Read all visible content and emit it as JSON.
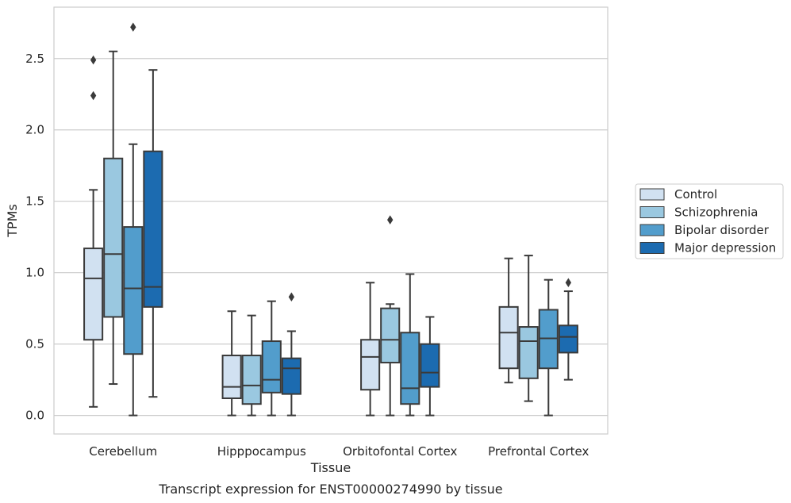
{
  "chart_data": {
    "type": "box",
    "xlabel": "Tissue",
    "ylabel": "TPMs",
    "caption": "Transcript expression for ENST00000274990 by tissue",
    "ylim": [
      -0.13,
      2.86
    ],
    "yticks": [
      0.0,
      0.5,
      1.0,
      1.5,
      2.0,
      2.5
    ],
    "ytick_labels": [
      "0.0",
      "0.5",
      "1.0",
      "1.5",
      "2.0",
      "2.5"
    ],
    "grid": "horizontal",
    "legend_position": "right",
    "categories": [
      "Cerebellum",
      "Hipppocampus",
      "Orbitofontal Cortex",
      "Prefrontal Cortex"
    ],
    "series": [
      {
        "name": "Control",
        "color": "#d1e1f1",
        "boxes": [
          {
            "whisker_low": 0.06,
            "q1": 0.53,
            "median": 0.96,
            "q3": 1.17,
            "whisker_high": 1.58,
            "outliers": [
              2.24,
              2.49
            ]
          },
          {
            "whisker_low": 0.0,
            "q1": 0.12,
            "median": 0.2,
            "q3": 0.42,
            "whisker_high": 0.73,
            "outliers": []
          },
          {
            "whisker_low": 0.0,
            "q1": 0.18,
            "median": 0.41,
            "q3": 0.53,
            "whisker_high": 0.93,
            "outliers": []
          },
          {
            "whisker_low": 0.23,
            "q1": 0.33,
            "median": 0.58,
            "q3": 0.76,
            "whisker_high": 1.1,
            "outliers": []
          }
        ]
      },
      {
        "name": "Schizophrenia",
        "color": "#9ac8e0",
        "boxes": [
          {
            "whisker_low": 0.22,
            "q1": 0.69,
            "median": 1.13,
            "q3": 1.8,
            "whisker_high": 2.55,
            "outliers": []
          },
          {
            "whisker_low": 0.0,
            "q1": 0.08,
            "median": 0.21,
            "q3": 0.42,
            "whisker_high": 0.7,
            "outliers": []
          },
          {
            "whisker_low": 0.0,
            "q1": 0.37,
            "median": 0.53,
            "q3": 0.75,
            "whisker_high": 0.78,
            "outliers": [
              1.37
            ]
          },
          {
            "whisker_low": 0.1,
            "q1": 0.26,
            "median": 0.52,
            "q3": 0.62,
            "whisker_high": 1.12,
            "outliers": []
          }
        ]
      },
      {
        "name": "Bipolar disorder",
        "color": "#529dcc",
        "boxes": [
          {
            "whisker_low": 0.0,
            "q1": 0.43,
            "median": 0.89,
            "q3": 1.32,
            "whisker_high": 1.9,
            "outliers": [
              2.72
            ]
          },
          {
            "whisker_low": 0.0,
            "q1": 0.16,
            "median": 0.25,
            "q3": 0.52,
            "whisker_high": 0.8,
            "outliers": []
          },
          {
            "whisker_low": 0.0,
            "q1": 0.08,
            "median": 0.19,
            "q3": 0.58,
            "whisker_high": 0.99,
            "outliers": []
          },
          {
            "whisker_low": 0.0,
            "q1": 0.33,
            "median": 0.54,
            "q3": 0.74,
            "whisker_high": 0.95,
            "outliers": []
          }
        ]
      },
      {
        "name": "Major depression",
        "color": "#1c6bb0",
        "boxes": [
          {
            "whisker_low": 0.13,
            "q1": 0.76,
            "median": 0.9,
            "q3": 1.85,
            "whisker_high": 2.42,
            "outliers": []
          },
          {
            "whisker_low": 0.0,
            "q1": 0.15,
            "median": 0.33,
            "q3": 0.4,
            "whisker_high": 0.59,
            "outliers": [
              0.83
            ]
          },
          {
            "whisker_low": 0.0,
            "q1": 0.2,
            "median": 0.3,
            "q3": 0.5,
            "whisker_high": 0.69,
            "outliers": []
          },
          {
            "whisker_low": 0.25,
            "q1": 0.44,
            "median": 0.55,
            "q3": 0.63,
            "whisker_high": 0.87,
            "outliers": [
              0.93
            ]
          }
        ]
      }
    ]
  }
}
